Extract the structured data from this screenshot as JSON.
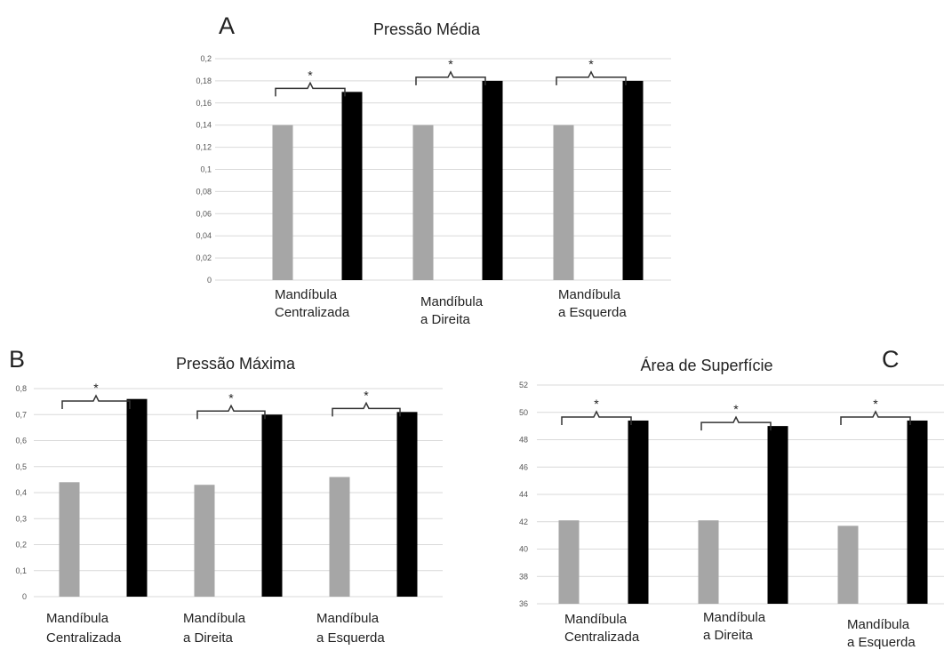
{
  "colors": {
    "before": "#a6a6a6",
    "after": "#000000",
    "grid": "#d9d9d9"
  },
  "chart_data": [
    {
      "panel": "A",
      "type": "bar",
      "title": "Pressão Média",
      "categories": [
        [
          "Mandíbula",
          "Centralizada"
        ],
        [
          "Mandíbula",
          "a Direita"
        ],
        [
          "Mandíbula",
          "a Esquerda"
        ]
      ],
      "series": [
        {
          "values": [
            0.14,
            0.14,
            0.14
          ]
        },
        {
          "values": [
            0.17,
            0.18,
            0.18
          ]
        }
      ],
      "ylim": [
        0,
        0.2
      ],
      "yticks": [
        0,
        0.02,
        0.04,
        0.06,
        0.08,
        0.1,
        0.12,
        0.14,
        0.16,
        0.18,
        0.2
      ],
      "ytick_labels": [
        "0",
        "0,02",
        "0,04",
        "0,06",
        "0,08",
        "0,1",
        "0,12",
        "0,14",
        "0,16",
        "0,18",
        "0,2"
      ],
      "significance": [
        "*",
        "*",
        "*"
      ],
      "grid": true
    },
    {
      "panel": "B",
      "type": "bar",
      "title": "Pressão Máxima",
      "categories": [
        [
          "Mandíbula",
          "Centralizada"
        ],
        [
          "Mandíbula",
          "a Direita"
        ],
        [
          "Mandíbula",
          "a Esquerda"
        ]
      ],
      "series": [
        {
          "values": [
            0.44,
            0.43,
            0.46
          ]
        },
        {
          "values": [
            0.76,
            0.7,
            0.71
          ]
        }
      ],
      "ylim": [
        0,
        0.8
      ],
      "yticks": [
        0,
        0.1,
        0.2,
        0.3,
        0.4,
        0.5,
        0.6,
        0.7,
        0.8
      ],
      "ytick_labels": [
        "0",
        "0,1",
        "0,2",
        "0,3",
        "0,4",
        "0,5",
        "0,6",
        "0,7",
        "0,8"
      ],
      "significance": [
        "*",
        "*",
        "*"
      ],
      "grid": true
    },
    {
      "panel": "C",
      "type": "bar",
      "title": "Área de Superfície",
      "categories": [
        [
          "Mandíbula",
          "Centralizada"
        ],
        [
          "Mandíbula",
          "a Direita"
        ],
        [
          "Mandíbula",
          "a Esquerda"
        ]
      ],
      "series": [
        {
          "values": [
            42.1,
            42.1,
            41.7
          ]
        },
        {
          "values": [
            49.4,
            49.0,
            49.4
          ]
        }
      ],
      "ylim": [
        36,
        52
      ],
      "yticks": [
        36,
        38,
        40,
        42,
        44,
        46,
        48,
        50,
        52
      ],
      "ytick_labels": [
        "36",
        "38",
        "40",
        "42",
        "44",
        "46",
        "48",
        "50",
        "52"
      ],
      "significance": [
        "*",
        "*",
        "*"
      ],
      "grid": true
    }
  ]
}
